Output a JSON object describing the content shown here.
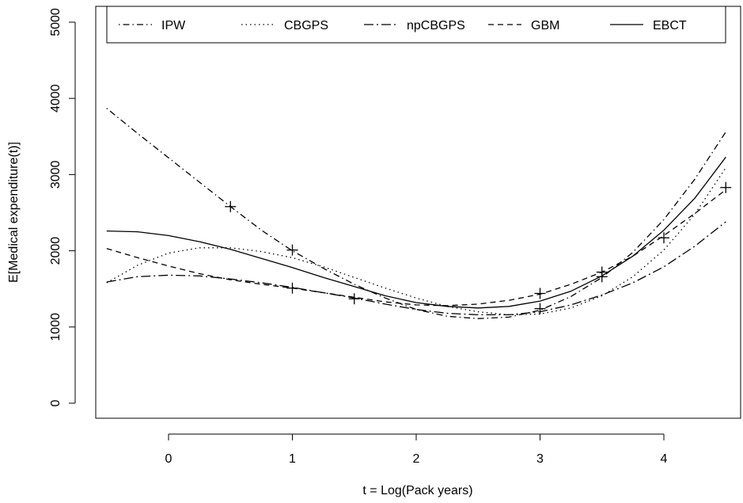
{
  "chart_data": {
    "type": "line",
    "xlabel": "t = Log(Pack years)",
    "ylabel": "E[Medical expenditure(t)]",
    "xlim": [
      -0.6,
      4.6
    ],
    "ylim": [
      0,
      5000
    ],
    "xticks": [
      "0",
      "1",
      "2",
      "3",
      "4"
    ],
    "yticks": [
      "0",
      "1000",
      "2000",
      "3000",
      "4000",
      "5000"
    ],
    "grid": false,
    "legend_position": "top",
    "x": [
      -0.5,
      -0.25,
      0,
      0.25,
      0.5,
      0.75,
      1,
      1.25,
      1.5,
      1.75,
      2,
      2.25,
      2.5,
      2.75,
      3,
      3.25,
      3.5,
      3.75,
      4,
      4.25,
      4.5
    ],
    "series": [
      {
        "name": "IPW",
        "dash": "dotdash",
        "values": [
          3870,
          3540,
          3220,
          2900,
          2580,
          2270,
          2000,
          1770,
          1560,
          1380,
          1230,
          1140,
          1110,
          1130,
          1220,
          1400,
          1650,
          1980,
          2410,
          2940,
          3560
        ]
      },
      {
        "name": "CBGPS",
        "dash": "dotted",
        "values": [
          1580,
          1810,
          1970,
          2040,
          2040,
          1990,
          1910,
          1790,
          1650,
          1510,
          1380,
          1270,
          1200,
          1160,
          1170,
          1250,
          1410,
          1660,
          2010,
          2480,
          3090
        ]
      },
      {
        "name": "npCBGPS",
        "dash": "longdash-dot",
        "values": [
          1590,
          1660,
          1680,
          1670,
          1630,
          1580,
          1520,
          1450,
          1380,
          1300,
          1230,
          1180,
          1160,
          1160,
          1200,
          1290,
          1420,
          1580,
          1790,
          2060,
          2380
        ]
      },
      {
        "name": "GBM",
        "dash": "dashed",
        "values": [
          2030,
          1910,
          1800,
          1700,
          1620,
          1560,
          1510,
          1450,
          1390,
          1330,
          1290,
          1280,
          1300,
          1350,
          1430,
          1560,
          1720,
          1930,
          2200,
          2490,
          2800
        ]
      },
      {
        "name": "EBCT",
        "dash": "solid",
        "values": [
          2260,
          2250,
          2200,
          2120,
          2020,
          1900,
          1780,
          1650,
          1530,
          1410,
          1320,
          1270,
          1250,
          1270,
          1340,
          1470,
          1670,
          1930,
          2270,
          2690,
          3230
        ]
      }
    ],
    "markers": [
      {
        "x": 0.5,
        "y": 2580
      },
      {
        "x": 1,
        "y": 2010
      },
      {
        "x": 1,
        "y": 1510
      },
      {
        "x": 1.5,
        "y": 1370
      },
      {
        "x": 3,
        "y": 1440
      },
      {
        "x": 3,
        "y": 1240
      },
      {
        "x": 3.5,
        "y": 1720
      },
      {
        "x": 3.5,
        "y": 1660
      },
      {
        "x": 4,
        "y": 2170
      },
      {
        "x": 4.5,
        "y": 2830
      }
    ]
  }
}
